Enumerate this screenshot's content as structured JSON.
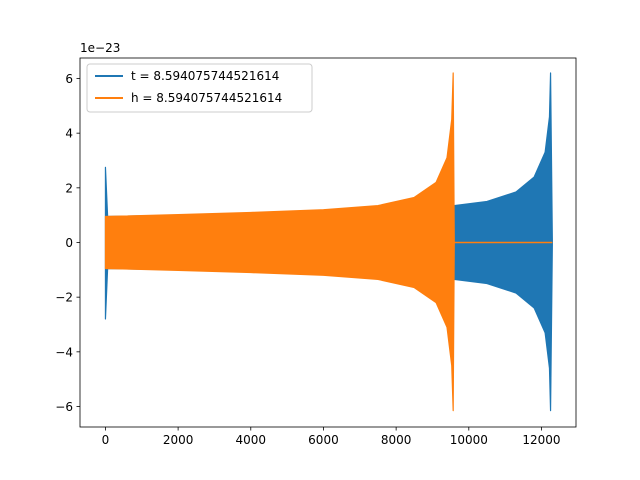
{
  "chart_data": {
    "type": "line",
    "title": "",
    "xlabel": "",
    "ylabel": "",
    "y_offset_label": "1e−23",
    "xlim": [
      -700,
      12950
    ],
    "ylim": [
      -6.75,
      6.75
    ],
    "xticks": [
      0,
      2000,
      4000,
      6000,
      8000,
      10000,
      12000
    ],
    "xtick_labels": [
      "0",
      "2000",
      "4000",
      "6000",
      "8000",
      "10000",
      "12000"
    ],
    "yticks": [
      -6,
      -4,
      -2,
      0,
      2,
      4,
      6
    ],
    "ytick_labels": [
      "−6",
      "−4",
      "−2",
      "0",
      "2",
      "4",
      "6"
    ],
    "legend_position": "top-left",
    "grid": false,
    "series": [
      {
        "name": "t = 8.594075744521614",
        "color": "#1f77b4",
        "envelope": [
          {
            "x": 0,
            "upper": 2.75,
            "lower": -2.8
          },
          {
            "x": 60,
            "upper": 0.95,
            "lower": -0.95
          },
          {
            "x": 2000,
            "upper": 1.0,
            "lower": -1.0
          },
          {
            "x": 4000,
            "upper": 1.07,
            "lower": -1.07
          },
          {
            "x": 6000,
            "upper": 1.16,
            "lower": -1.16
          },
          {
            "x": 8000,
            "upper": 1.3,
            "lower": -1.3
          },
          {
            "x": 9000,
            "upper": 1.45,
            "lower": -1.45
          },
          {
            "x": 9600,
            "upper": 1.35,
            "lower": -1.35
          },
          {
            "x": 10500,
            "upper": 1.5,
            "lower": -1.5
          },
          {
            "x": 11300,
            "upper": 1.85,
            "lower": -1.85
          },
          {
            "x": 11800,
            "upper": 2.4,
            "lower": -2.4
          },
          {
            "x": 12100,
            "upper": 3.3,
            "lower": -3.3
          },
          {
            "x": 12220,
            "upper": 4.6,
            "lower": -4.6
          },
          {
            "x": 12250,
            "upper": 6.2,
            "lower": -6.15
          },
          {
            "x": 12300,
            "upper": 0,
            "lower": 0
          }
        ]
      },
      {
        "name": "h = 8.594075744521614",
        "color": "#ff7f0e",
        "envelope": [
          {
            "x": 0,
            "upper": 0.95,
            "lower": -0.95
          },
          {
            "x": 2000,
            "upper": 1.02,
            "lower": -1.02
          },
          {
            "x": 4000,
            "upper": 1.1,
            "lower": -1.1
          },
          {
            "x": 6000,
            "upper": 1.2,
            "lower": -1.2
          },
          {
            "x": 7500,
            "upper": 1.35,
            "lower": -1.35
          },
          {
            "x": 8500,
            "upper": 1.65,
            "lower": -1.65
          },
          {
            "x": 9100,
            "upper": 2.2,
            "lower": -2.2
          },
          {
            "x": 9400,
            "upper": 3.1,
            "lower": -3.1
          },
          {
            "x": 9530,
            "upper": 4.5,
            "lower": -4.5
          },
          {
            "x": 9570,
            "upper": 6.2,
            "lower": -6.15
          },
          {
            "x": 9600,
            "upper": 0,
            "lower": 0
          }
        ],
        "tail": {
          "x_start": 9600,
          "x_end": 12300,
          "value": 0
        }
      }
    ]
  }
}
